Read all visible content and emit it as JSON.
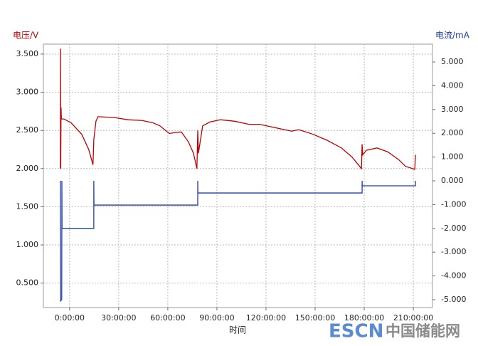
{
  "chart_data": {
    "type": "line",
    "y_label": "电压/V",
    "y2_label": "电流/mA",
    "x_label": "时间",
    "xlim": [
      -16,
      221.7
    ],
    "ylim": [
      0.18,
      3.63
    ],
    "y2lim": [
      -5.33,
      5.75
    ],
    "xticks": [
      {
        "value": 0,
        "label": "0:00:00"
      },
      {
        "value": 30,
        "label": "30:00:00"
      },
      {
        "value": 60,
        "label": "60:00:00"
      },
      {
        "value": 90,
        "label": "90:00:00"
      },
      {
        "value": 120,
        "label": "120:00:00"
      },
      {
        "value": 150,
        "label": "150:00:00"
      },
      {
        "value": 180,
        "label": "180:00:00"
      },
      {
        "value": 210,
        "label": "210:00:00"
      }
    ],
    "yticks": [
      {
        "value": 0.5,
        "label": "0.500"
      },
      {
        "value": 1,
        "label": "1.000"
      },
      {
        "value": 1.5,
        "label": "1.500"
      },
      {
        "value": 2,
        "label": "2.000"
      },
      {
        "value": 2.5,
        "label": "2.500"
      },
      {
        "value": 3,
        "label": "3.000"
      },
      {
        "value": 3.5,
        "label": "3.500"
      }
    ],
    "y2ticks": [
      {
        "value": -5,
        "label": "-5.000"
      },
      {
        "value": -4,
        "label": "-4.000"
      },
      {
        "value": -3,
        "label": "-3.000"
      },
      {
        "value": -2,
        "label": "-2.000"
      },
      {
        "value": -1,
        "label": "-1.000"
      },
      {
        "value": 0,
        "label": "0.000"
      },
      {
        "value": 1,
        "label": "1.000"
      },
      {
        "value": 2,
        "label": "2.000"
      },
      {
        "value": 3,
        "label": "3.000"
      },
      {
        "value": 4,
        "label": "4.000"
      },
      {
        "value": 5,
        "label": "5.000"
      }
    ],
    "grid": true,
    "series": [
      {
        "color": "#c00000",
        "x": [
          -5.6,
          -5.5,
          -5.4,
          -5.2,
          -5,
          -3.5,
          0.9,
          7.4,
          11.7,
          14.3,
          14.8,
          16.1,
          17.4,
          27,
          35.7,
          44.3,
          50.9,
          55.2,
          60.9,
          63.9,
          68.3,
          72.6,
          75.7,
          77.8,
          78.3,
          78.7,
          81.3,
          85.7,
          92.2,
          100.9,
          109.6,
          116.1,
          122.6,
          131.3,
          135.7,
          140,
          148.7,
          157.4,
          166.1,
          172.6,
          178.3,
          178.7,
          179.1,
          181.3,
          187.8,
          194.3,
          200.9,
          205.2,
          210.9,
          211.3
        ],
        "values": [
          2.0,
          3.57,
          2.0,
          2.8,
          2.65,
          2.65,
          2.6,
          2.45,
          2.25,
          2.05,
          2.38,
          2.62,
          2.68,
          2.67,
          2.64,
          2.63,
          2.6,
          2.56,
          2.46,
          2.47,
          2.48,
          2.35,
          2.2,
          2.0,
          2.5,
          2.2,
          2.56,
          2.61,
          2.64,
          2.62,
          2.58,
          2.58,
          2.55,
          2.51,
          2.49,
          2.51,
          2.45,
          2.37,
          2.27,
          2.15,
          2.0,
          2.32,
          2.18,
          2.24,
          2.27,
          2.22,
          2.12,
          2.03,
          1.99,
          2.18
        ]
      },
      {
        "color": "#1f3fa0",
        "axis": "y2",
        "x": [
          -5.6,
          -5.5,
          -4.8,
          -4.7,
          -4.6,
          14.8,
          14.8,
          14.9,
          78.3,
          78.3,
          78.4,
          178.7,
          178.7,
          178.8,
          211.3,
          211.3
        ],
        "values": [
          0,
          -5.05,
          -5.0,
          0,
          -2.0,
          -2.0,
          0,
          -1.02,
          -1.02,
          0,
          -0.51,
          -0.51,
          0,
          -0.21,
          -0.21,
          0
        ]
      }
    ]
  },
  "watermark": {
    "logo": "ESCN",
    "text": "中国储能网"
  }
}
